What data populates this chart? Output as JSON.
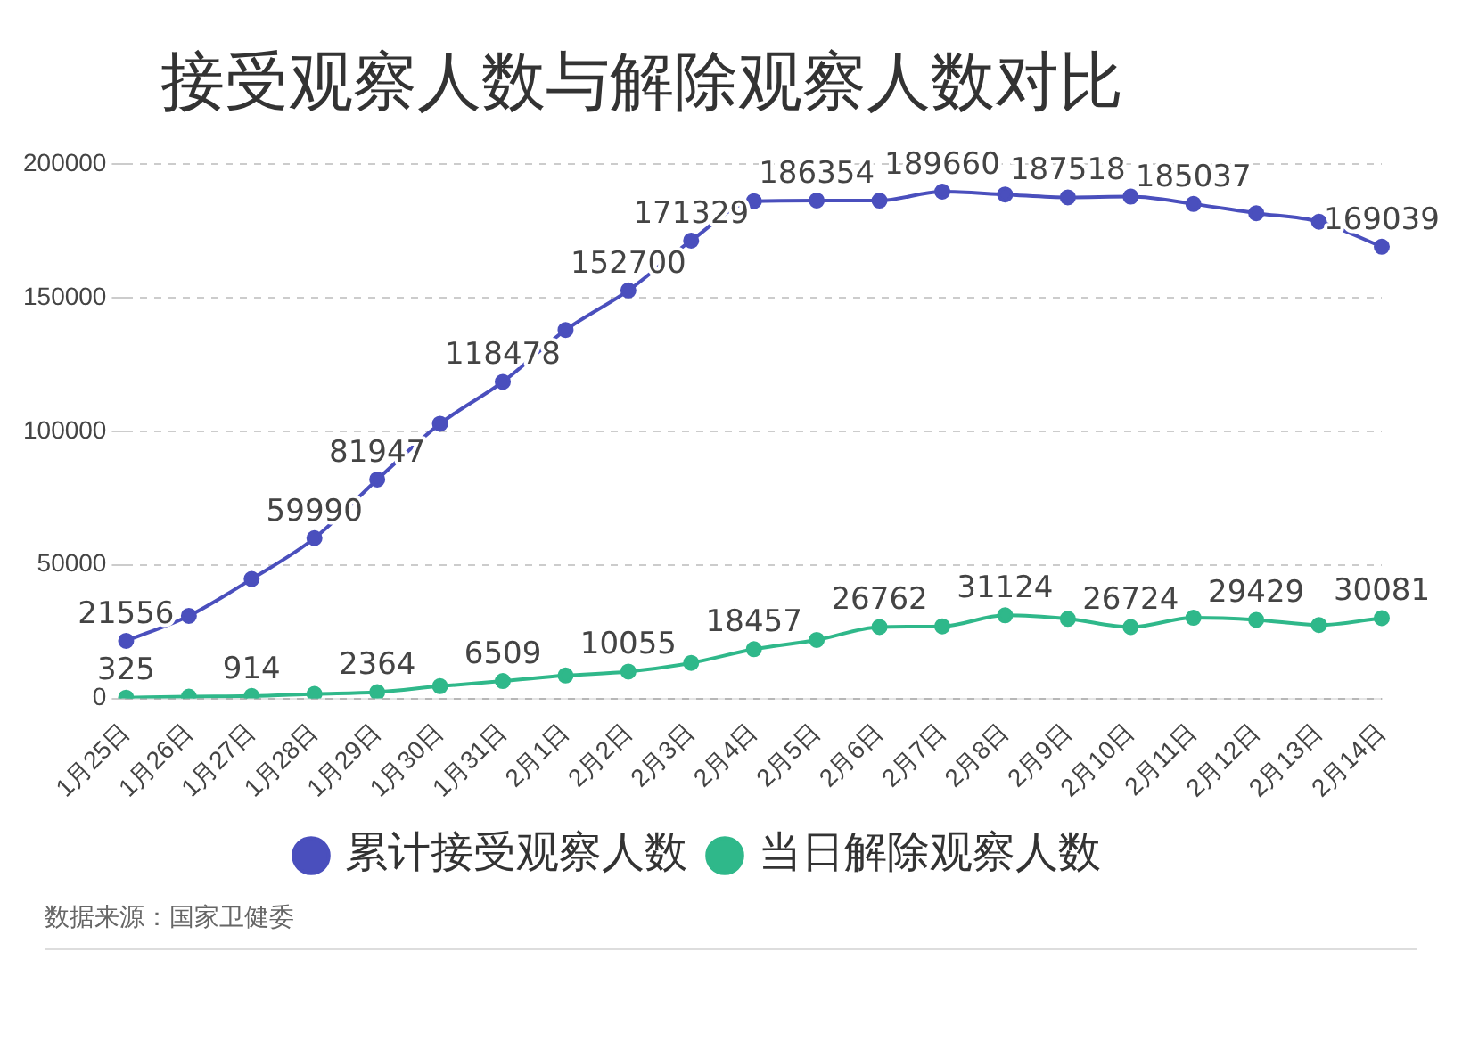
{
  "chart_data": {
    "type": "line",
    "title": "接受观察人数与解除观察人数对比",
    "categories": [
      "1月25日",
      "1月26日",
      "1月27日",
      "1月28日",
      "1月29日",
      "1月30日",
      "1月31日",
      "2月1日",
      "2月2日",
      "2月3日",
      "2月4日",
      "2月5日",
      "2月6日",
      "2月7日",
      "2月8日",
      "2月9日",
      "2月10日",
      "2月11日",
      "2月12日",
      "2月13日",
      "2月14日"
    ],
    "series": [
      {
        "name": "累计接受观察人数",
        "color": "#4a4fbd",
        "values": [
          21556,
          30900,
          44700,
          59990,
          81947,
          102800,
          118478,
          137900,
          152700,
          171329,
          186100,
          186354,
          186300,
          189660,
          188600,
          187518,
          187800,
          185037,
          181600,
          178400,
          169039
        ],
        "value_labels": [
          "21556",
          null,
          null,
          "59990",
          "81947",
          null,
          "118478",
          null,
          "152700",
          "171329",
          null,
          "186354",
          null,
          "189660",
          null,
          "187518",
          null,
          "185037",
          null,
          null,
          "169039"
        ]
      },
      {
        "name": "当日解除观察人数",
        "color": "#2fb88a",
        "values": [
          325,
          700,
          914,
          1700,
          2364,
          4600,
          6509,
          8600,
          10055,
          13300,
          18457,
          21900,
          26762,
          27000,
          31124,
          29800,
          26724,
          30200,
          29429,
          27500,
          30081
        ],
        "value_labels": [
          "325",
          null,
          "914",
          null,
          "2364",
          null,
          "6509",
          null,
          "10055",
          null,
          "18457",
          null,
          "26762",
          null,
          "31124",
          null,
          "26724",
          null,
          "29429",
          null,
          "30081"
        ]
      }
    ],
    "ylim": [
      0,
      200000
    ],
    "yticks": [
      0,
      50000,
      100000,
      150000,
      200000
    ],
    "grid": "y",
    "legend": "bottom",
    "marker": "circle",
    "line_style": "solid",
    "annotations": [
      "数据来源：国家卫健委"
    ]
  }
}
